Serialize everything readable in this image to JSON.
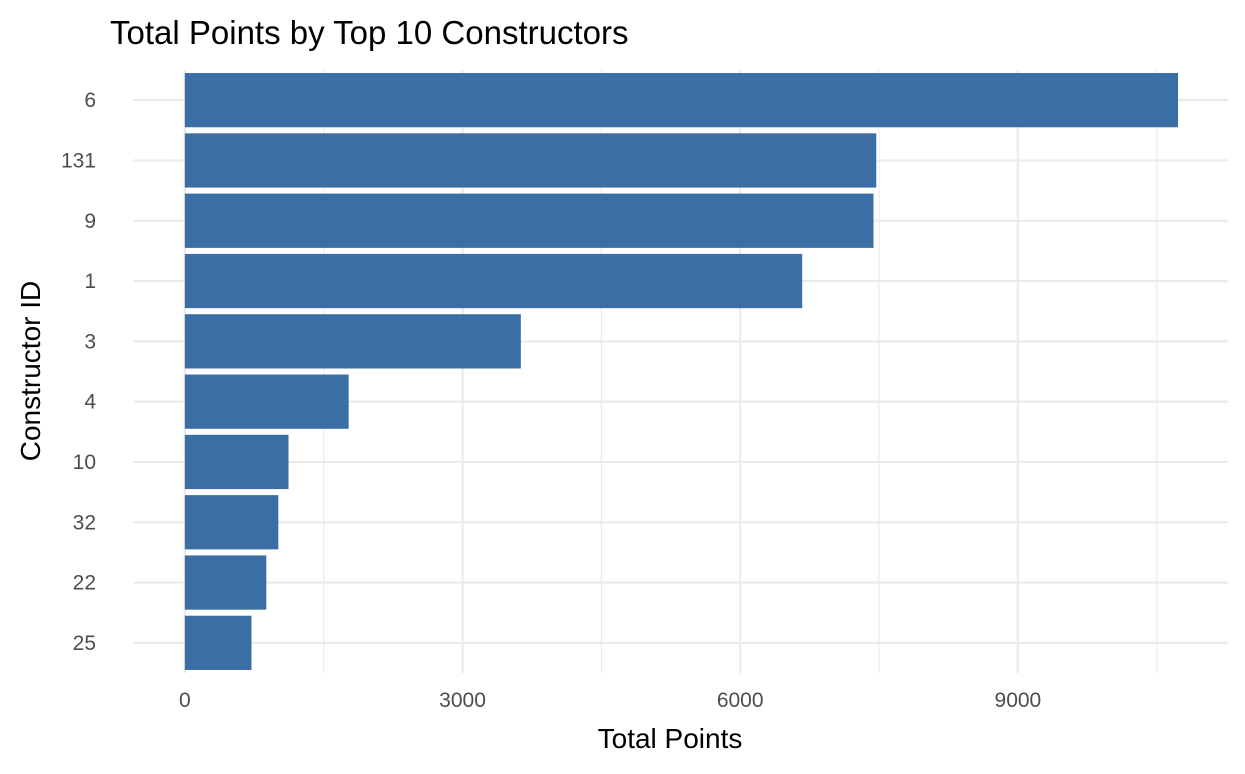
{
  "chart_data": {
    "type": "bar",
    "orientation": "horizontal",
    "title": "Total Points by Top 10 Constructors",
    "xlabel": "Total Points",
    "ylabel": "Constructor ID",
    "categories": [
      "6",
      "131",
      "9",
      "1",
      "3",
      "4",
      "10",
      "32",
      "22",
      "25"
    ],
    "values": [
      10730,
      7470,
      7440,
      6670,
      3630,
      1770,
      1120,
      1010,
      880,
      720
    ],
    "xlim": [
      -560,
      11270
    ],
    "xticks": [
      0,
      3000,
      6000,
      9000
    ],
    "xtick_labels": [
      "0",
      "3000",
      "6000",
      "9000"
    ],
    "bar_color": "#3A6EA5",
    "grid": true,
    "legend": "none"
  }
}
